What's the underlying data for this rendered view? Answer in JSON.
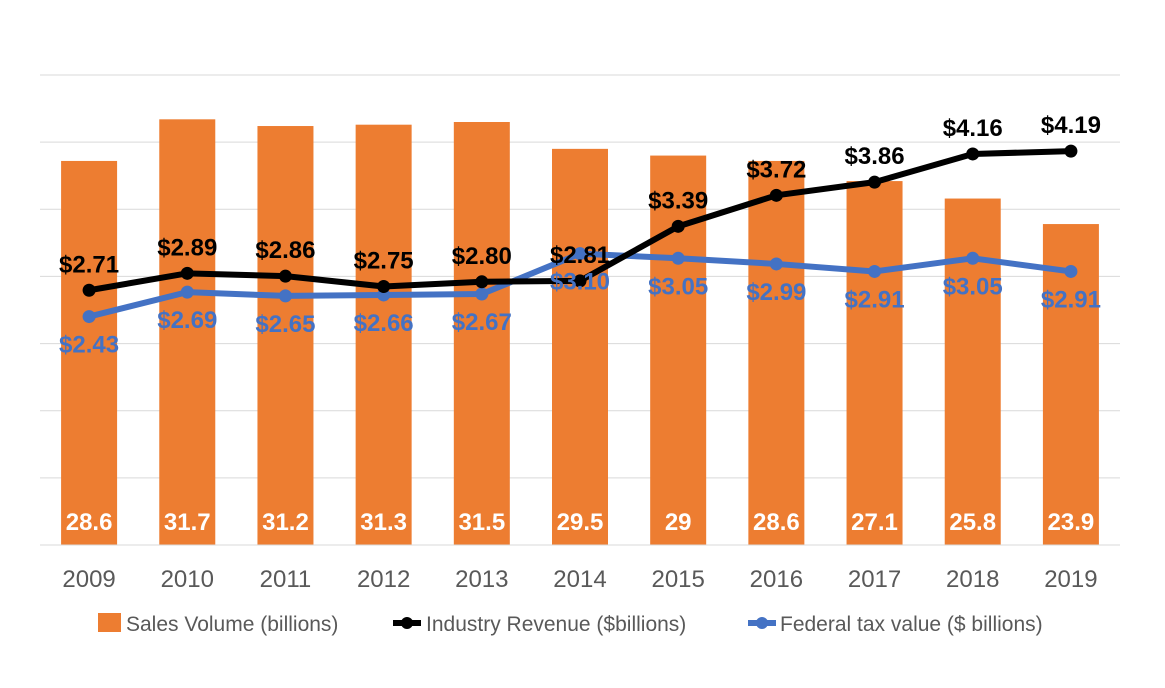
{
  "chart_data": {
    "type": "bar",
    "categories": [
      "2009",
      "2010",
      "2011",
      "2012",
      "2013",
      "2014",
      "2015",
      "2016",
      "2017",
      "2018",
      "2019"
    ],
    "series": [
      {
        "name": "Sales Volume (billions)",
        "type": "bar",
        "values": [
          28.6,
          31.7,
          31.2,
          31.3,
          31.5,
          29.5,
          29,
          28.6,
          27.1,
          25.8,
          23.9
        ],
        "labels": [
          "28.6",
          "31.7",
          "31.2",
          "31.3",
          "31.5",
          "29.5",
          "29",
          "28.6",
          "27.1",
          "25.8",
          "23.9"
        ],
        "color": "#ed7d31"
      },
      {
        "name": "Industry Revenue ($billions)",
        "type": "line",
        "values": [
          2.71,
          2.89,
          2.86,
          2.75,
          2.8,
          2.81,
          3.39,
          3.72,
          3.86,
          4.16,
          4.19
        ],
        "labels": [
          "$2.71",
          "$2.89",
          "$2.86",
          "$2.75",
          "$2.80",
          "$2.81",
          "$3.39",
          "$3.72",
          "$3.86",
          "$4.16",
          "$4.19"
        ],
        "color": "#000000"
      },
      {
        "name": "Federal tax value ($ billions)",
        "type": "line",
        "values": [
          2.43,
          2.69,
          2.65,
          2.66,
          2.67,
          3.1,
          3.05,
          2.99,
          2.91,
          3.05,
          2.91
        ],
        "labels": [
          "$2.43",
          "$2.69",
          "$2.65",
          "$2.66",
          "$2.67",
          "$3.10",
          "$3.05",
          "$2.99",
          "$2.91",
          "$3.05",
          "$2.91"
        ],
        "color": "#4472c4"
      }
    ],
    "bar_axis_range": [
      0,
      35
    ],
    "line_axis_range": [
      0,
      5
    ],
    "grid": true,
    "legend_position": "bottom"
  }
}
